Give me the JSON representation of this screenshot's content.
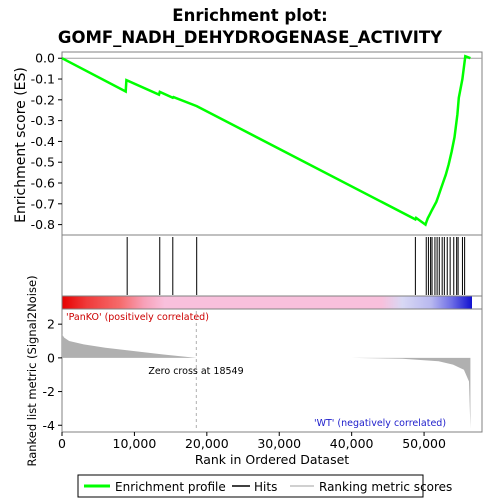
{
  "title_line1": "Enrichment plot:",
  "title_line2": "GOMF_NADH_DEHYDROGENASE_ACTIVITY",
  "chart_data": {
    "type": "line",
    "x_range": [
      0,
      58000
    ],
    "x_ticks": [
      0,
      10000,
      20000,
      30000,
      40000,
      50000
    ],
    "x_tick_labels": [
      "0",
      "10,000",
      "20,000",
      "30,000",
      "40,000",
      "50,000"
    ],
    "xlabel": "Rank in Ordered Dataset",
    "es_panel": {
      "ylabel": "Enrichment score (ES)",
      "ylim": [
        -0.85,
        0.03
      ],
      "y_ticks": [
        0.0,
        -0.1,
        -0.2,
        -0.3,
        -0.4,
        -0.5,
        -0.6,
        -0.7,
        -0.8
      ],
      "y_tick_labels": [
        "0.0",
        "-0.1",
        "-0.2",
        "-0.3",
        "-0.4",
        "-0.5",
        "-0.6",
        "-0.7",
        "-0.8"
      ],
      "series_name": "Enrichment profile",
      "color": "#00ff00",
      "points": [
        [
          0,
          0.0
        ],
        [
          8800,
          -0.16
        ],
        [
          8900,
          -0.105
        ],
        [
          13400,
          -0.175
        ],
        [
          13500,
          -0.162
        ],
        [
          15300,
          -0.19
        ],
        [
          15400,
          -0.187
        ],
        [
          18600,
          -0.23
        ],
        [
          48800,
          -0.775
        ],
        [
          48900,
          -0.768
        ],
        [
          50200,
          -0.8
        ],
        [
          50300,
          -0.79
        ],
        [
          50500,
          -0.77
        ],
        [
          50800,
          -0.75
        ],
        [
          51100,
          -0.73
        ],
        [
          51400,
          -0.71
        ],
        [
          51700,
          -0.69
        ],
        [
          52000,
          -0.66
        ],
        [
          52300,
          -0.63
        ],
        [
          52600,
          -0.6
        ],
        [
          53000,
          -0.56
        ],
        [
          53400,
          -0.51
        ],
        [
          53800,
          -0.45
        ],
        [
          54200,
          -0.38
        ],
        [
          54600,
          -0.27
        ],
        [
          54800,
          -0.19
        ],
        [
          55300,
          -0.1
        ],
        [
          55700,
          0.01
        ],
        [
          56400,
          0.0
        ]
      ]
    },
    "hits": [
      9000,
      13500,
      15300,
      18600,
      48800,
      50300,
      50600,
      50900,
      51100,
      51500,
      51800,
      52100,
      52500,
      52800,
      53200,
      53600,
      54100,
      54500,
      54700,
      55300,
      55600
    ],
    "metric_panel": {
      "ylabel": "Ranked list metric (Signal2Noise)",
      "ylim": [
        -4.4,
        2.9
      ],
      "y_ticks": [
        2,
        0,
        -2,
        -4
      ],
      "y_tick_labels": [
        "2",
        "0",
        "-2",
        "-4"
      ],
      "zero_cross": 18549,
      "zero_cross_label": "Zero cross at 18549",
      "positive_label": "'PanKO' (positively correlated)",
      "negative_label": "'WT' (negatively correlated)",
      "profile": [
        [
          0,
          1.4
        ],
        [
          300,
          1.2
        ],
        [
          1000,
          1.0
        ],
        [
          3000,
          0.8
        ],
        [
          6000,
          0.6
        ],
        [
          10000,
          0.4
        ],
        [
          14000,
          0.2
        ],
        [
          18549,
          0.0
        ],
        [
          30000,
          0.0
        ],
        [
          40000,
          0.0
        ],
        [
          47000,
          -0.05
        ],
        [
          52000,
          -0.2
        ],
        [
          54000,
          -0.4
        ],
        [
          55500,
          -0.7
        ],
        [
          56200,
          -1.4
        ],
        [
          56400,
          -4.2
        ]
      ],
      "color": "#b0b0b0"
    },
    "legend": [
      {
        "label": "Enrichment profile",
        "color": "#00ff00"
      },
      {
        "label": "Hits",
        "color": "#000000"
      },
      {
        "label": "Ranking metric scores",
        "color": "#c0c0c0"
      }
    ]
  }
}
